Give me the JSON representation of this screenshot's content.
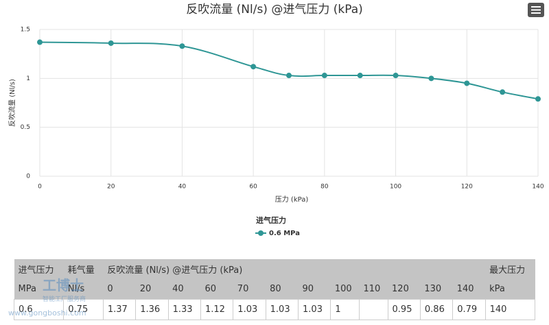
{
  "chart_data": {
    "type": "line",
    "title": "反吹流量 (Nl/s) @进气压力 (kPa)",
    "y_label": "反吹流量 (Nl/s)",
    "x_label": "压力 (kPa)",
    "legend_title": "进气压力",
    "x": [
      0,
      20,
      40,
      60,
      70,
      80,
      90,
      100,
      110,
      120,
      130,
      140
    ],
    "series": [
      {
        "name": "0.6 MPa",
        "color": "#2e9695",
        "values": [
          1.37,
          1.36,
          1.33,
          1.12,
          1.03,
          1.03,
          1.03,
          1.03,
          1.0,
          0.95,
          0.86,
          0.79
        ]
      }
    ],
    "xlim": [
      0,
      140
    ],
    "xticks": [
      0,
      20,
      40,
      60,
      80,
      100,
      120,
      140
    ],
    "ylim": [
      0,
      1.5
    ],
    "yticks": [
      0,
      0.5,
      1,
      1.5
    ],
    "grid": true,
    "smooth": true
  },
  "table": {
    "header": [
      [
        "进气压力",
        "耗气量",
        "反吹流量 (Nl/s) @进气压力 (kPa)",
        "最大压力"
      ],
      [
        "MPa",
        "Nl/s",
        "0",
        "20",
        "40",
        "60",
        "70",
        "80",
        "90",
        "100",
        "110",
        "120",
        "130",
        "140",
        "kPa"
      ]
    ],
    "rows": [
      [
        "0.6",
        "0.75",
        "1.37",
        "1.36",
        "1.33",
        "1.12",
        "1.03",
        "1.03",
        "1.03",
        "1",
        null,
        "0.95",
        "0.86",
        "0.79",
        "140"
      ]
    ]
  },
  "watermark": {
    "brand": "工博士",
    "slogan": "智能工厂服务商",
    "url": "www.gongboshi.com"
  }
}
